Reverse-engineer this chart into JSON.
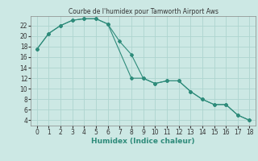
{
  "line1_x": [
    0,
    1,
    2,
    3,
    4,
    5,
    6,
    7,
    8,
    9,
    10,
    11,
    12,
    13,
    14,
    15,
    16,
    17,
    18
  ],
  "line1_y": [
    17.5,
    20.5,
    22.0,
    23.0,
    23.3,
    23.3,
    22.3,
    19.0,
    16.5,
    12.0,
    11.0,
    11.5,
    11.5,
    9.5,
    8.0,
    7.0,
    7.0,
    5.0,
    4.0
  ],
  "line2_x": [
    0,
    1,
    2,
    3,
    4,
    5,
    6,
    8,
    9,
    10,
    11,
    12,
    13,
    14,
    15,
    16,
    17,
    18
  ],
  "line2_y": [
    17.5,
    20.5,
    22.0,
    23.0,
    23.3,
    23.3,
    22.3,
    12.0,
    12.0,
    11.0,
    11.5,
    11.5,
    9.5,
    8.0,
    7.0,
    7.0,
    5.0,
    4.0
  ],
  "color": "#2e8b7a",
  "bg_color": "#cce8e4",
  "grid_color": "#aed4cf",
  "title": "Courbe de l'humidex pour Tamworth Airport Aws",
  "xlabel": "Humidex (Indice chaleur)",
  "xlim": [
    -0.5,
    18.5
  ],
  "ylim": [
    3,
    23.8
  ],
  "xticks": [
    0,
    1,
    2,
    3,
    4,
    5,
    6,
    7,
    8,
    9,
    10,
    11,
    12,
    13,
    14,
    15,
    16,
    17,
    18
  ],
  "yticks": [
    4,
    6,
    8,
    10,
    12,
    14,
    16,
    18,
    20,
    22
  ],
  "title_fontsize": 5.5,
  "tick_fontsize": 5.5,
  "xlabel_fontsize": 6.5
}
